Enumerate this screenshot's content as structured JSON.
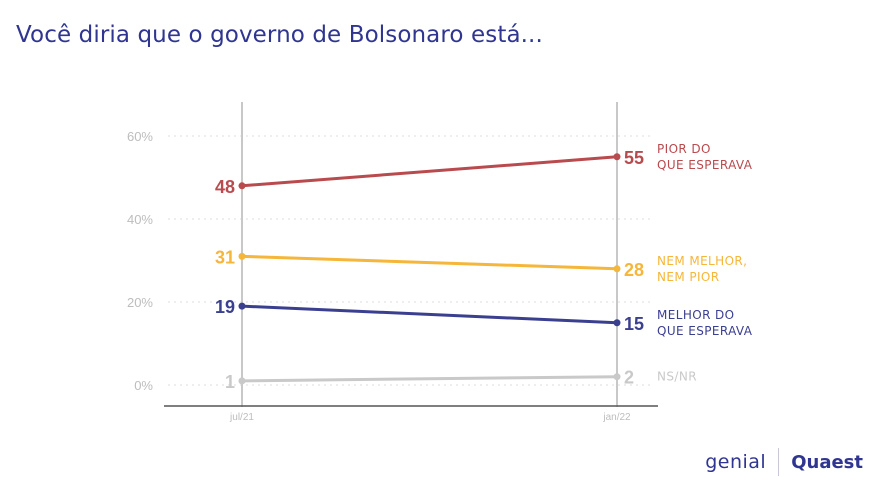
{
  "title": "Você diria que o governo de Bolsonaro está...",
  "logos": {
    "genial": "genial",
    "quaest": "Quaest"
  },
  "chart_data": {
    "type": "line",
    "x": [
      "jul/21",
      "jan/22"
    ],
    "ylim": [
      0,
      60
    ],
    "yticks": [
      "0%",
      "20%",
      "40%",
      "60%"
    ],
    "grid": true,
    "series": [
      {
        "name": "PIOR DO QUE ESPERAVA",
        "label_lines": [
          "PIOR DO",
          "QUE ESPERAVA"
        ],
        "values": [
          48,
          55
        ],
        "color": "#b94a4e"
      },
      {
        "name": "NEM MELHOR, NEM PIOR",
        "label_lines": [
          "NEM MELHOR,",
          "NEM PIOR"
        ],
        "values": [
          31,
          28
        ],
        "color": "#f5b63a"
      },
      {
        "name": "MELHOR DO QUE ESPERAVA",
        "label_lines": [
          "MELHOR DO",
          "QUE ESPERAVA"
        ],
        "values": [
          19,
          15
        ],
        "color": "#3b3f8f"
      },
      {
        "name": "NS/NR",
        "label_lines": [
          "NS/NR"
        ],
        "values": [
          1,
          2
        ],
        "color": "#c9c9c9"
      }
    ]
  }
}
